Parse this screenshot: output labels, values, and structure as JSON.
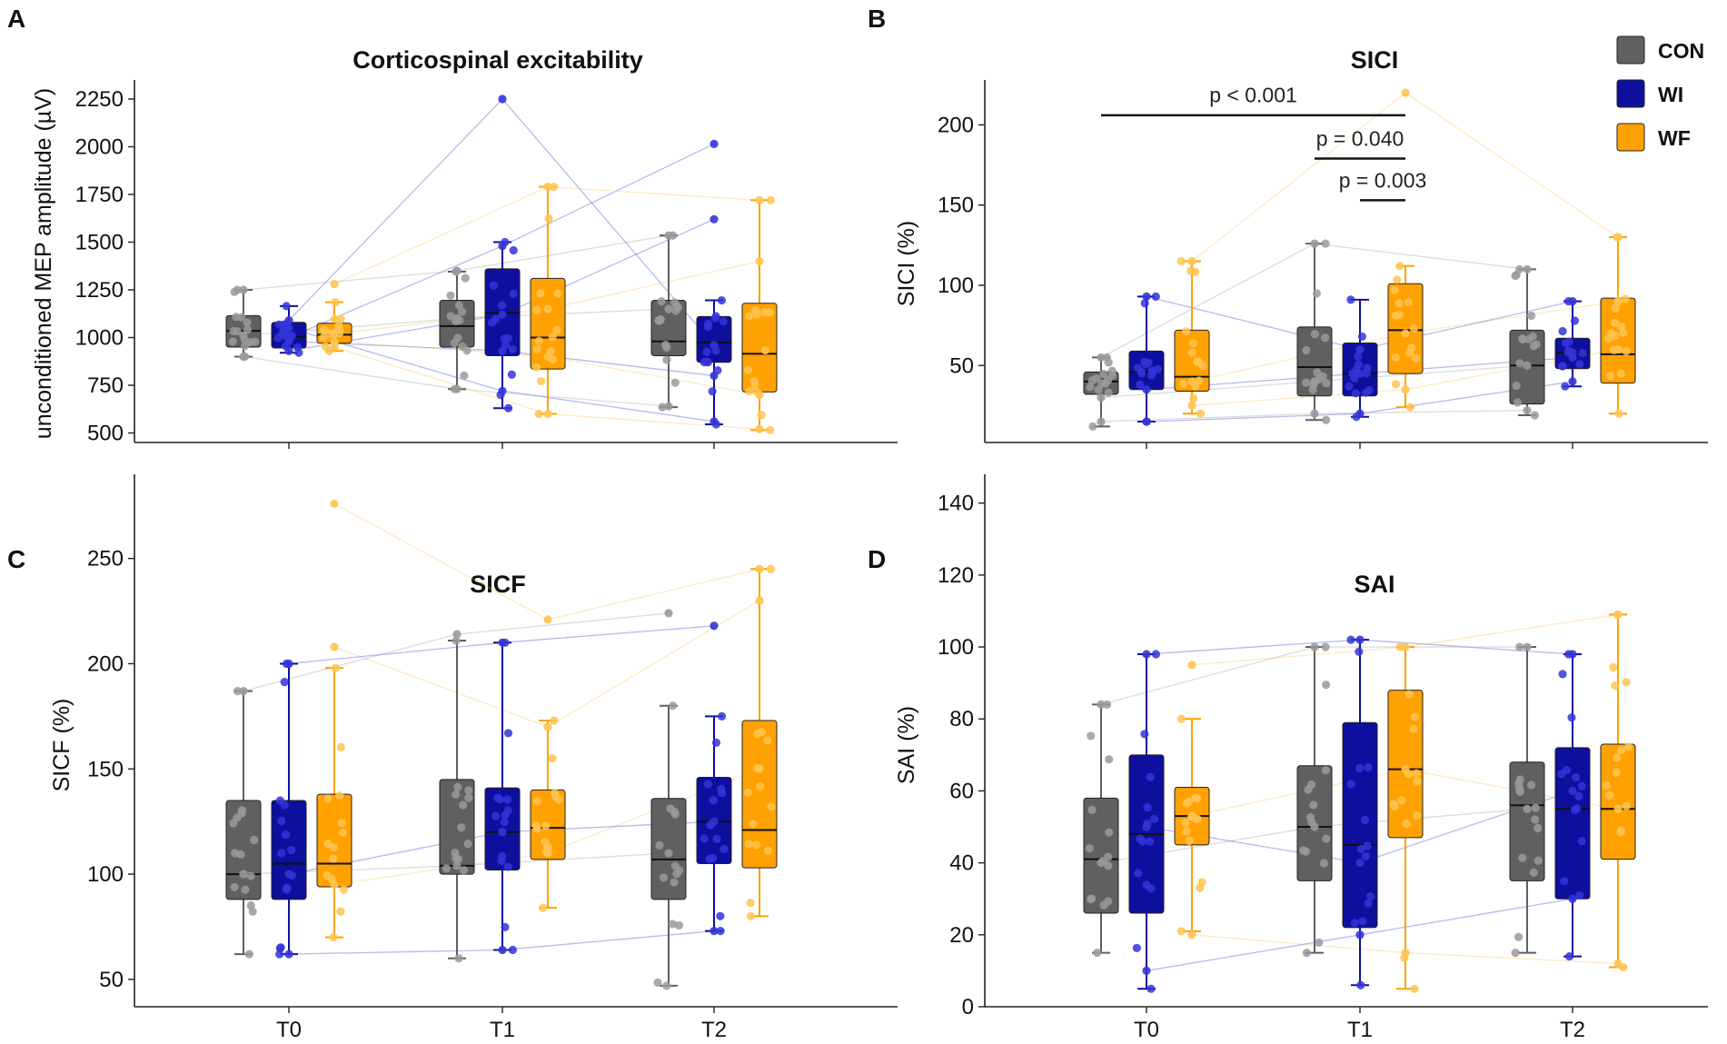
{
  "colors": {
    "CON": "#606060",
    "WI": "#0f0f9e",
    "WF": "#ffa100",
    "CON_point": "#9a9a9a",
    "WI_point": "#3434d8",
    "WF_point": "#ffc451"
  },
  "legend": [
    {
      "key": "CON",
      "label": "CON"
    },
    {
      "key": "WI",
      "label": "WI"
    },
    {
      "key": "WF",
      "label": "WF"
    }
  ],
  "chart_data": [
    {
      "panel": "A",
      "type": "box",
      "title": "Corticospinal excitability",
      "ylabel": "unconditioned MEP amplitude (µV)",
      "xlabel": "",
      "categories": [
        "T0",
        "T1",
        "T2"
      ],
      "ylim": [
        450,
        2350
      ],
      "yticks": [
        500,
        750,
        1000,
        1250,
        1500,
        1750,
        2000,
        2250
      ],
      "series": [
        {
          "name": "CON",
          "boxes": [
            {
              "whisker_low": 900,
              "q1": 950,
              "median": 1035,
              "q3": 1115,
              "whisker_high": 1250
            },
            {
              "whisker_low": 730,
              "q1": 950,
              "median": 1060,
              "q3": 1195,
              "whisker_high": 1345
            },
            {
              "whisker_low": 635,
              "q1": 905,
              "median": 980,
              "q3": 1195,
              "whisker_high": 1535
            }
          ]
        },
        {
          "name": "WI",
          "boxes": [
            {
              "whisker_low": 920,
              "q1": 945,
              "median": 1005,
              "q3": 1080,
              "whisker_high": 1165
            },
            {
              "whisker_low": 630,
              "q1": 905,
              "median": 1130,
              "q3": 1360,
              "whisker_high": 1500
            },
            {
              "whisker_low": 545,
              "q1": 870,
              "median": 975,
              "q3": 1110,
              "whisker_high": 1195
            }
          ]
        },
        {
          "name": "WF",
          "boxes": [
            {
              "whisker_low": 930,
              "q1": 970,
              "median": 1015,
              "q3": 1075,
              "whisker_high": 1185
            },
            {
              "whisker_low": 600,
              "q1": 835,
              "median": 1000,
              "q3": 1310,
              "whisker_high": 1790
            },
            {
              "whisker_low": 515,
              "q1": 715,
              "median": 915,
              "q3": 1180,
              "whisker_high": 1720
            }
          ]
        }
      ],
      "points": [
        {
          "group": "WI",
          "values": [
            1090,
            2250,
            960
          ]
        },
        {
          "group": "WI",
          "values": [
            1000,
            1480,
            2015
          ]
        },
        {
          "group": "WI",
          "values": [
            930,
            1120,
            1620
          ]
        },
        {
          "group": "WI",
          "values": [
            1050,
            720,
            560
          ]
        },
        {
          "group": "WI",
          "values": [
            980,
            930,
            800
          ]
        },
        {
          "group": "CON",
          "values": [
            1250,
            1350,
            1535
          ]
        },
        {
          "group": "CON",
          "values": [
            900,
            730,
            640
          ]
        },
        {
          "group": "CON",
          "values": [
            1010,
            1100,
            1150
          ]
        },
        {
          "group": "WF",
          "values": [
            1280,
            1790,
            1720
          ]
        },
        {
          "group": "WF",
          "values": [
            950,
            600,
            520
          ]
        },
        {
          "group": "WF",
          "values": [
            1020,
            1150,
            1400
          ]
        },
        {
          "group": "WF",
          "values": [
            980,
            900,
            700
          ]
        }
      ],
      "annotations": []
    },
    {
      "panel": "B",
      "type": "box",
      "title": "SICI",
      "ylabel": "SICI (%)",
      "xlabel": "",
      "categories": [
        "T0",
        "T1",
        "T2"
      ],
      "ylim": [
        2,
        228
      ],
      "yticks": [
        50,
        100,
        150,
        200
      ],
      "series": [
        {
          "name": "CON",
          "boxes": [
            {
              "whisker_low": 12,
              "q1": 32,
              "median": 40,
              "q3": 46,
              "whisker_high": 55
            },
            {
              "whisker_low": 16,
              "q1": 31,
              "median": 49,
              "q3": 74,
              "whisker_high": 126
            },
            {
              "whisker_low": 19,
              "q1": 26,
              "median": 50,
              "q3": 72,
              "whisker_high": 110
            }
          ]
        },
        {
          "name": "WI",
          "boxes": [
            {
              "whisker_low": 15,
              "q1": 35,
              "median": 46,
              "q3": 59,
              "whisker_high": 93
            },
            {
              "whisker_low": 18,
              "q1": 31,
              "median": 45,
              "q3": 64,
              "whisker_high": 91
            },
            {
              "whisker_low": 37,
              "q1": 48,
              "median": 58,
              "q3": 67,
              "whisker_high": 90
            }
          ]
        },
        {
          "name": "WF",
          "boxes": [
            {
              "whisker_low": 20,
              "q1": 34,
              "median": 43,
              "q3": 72,
              "whisker_high": 115
            },
            {
              "whisker_low": 24,
              "q1": 45,
              "median": 72,
              "q3": 101,
              "whisker_high": 112
            },
            {
              "whisker_low": 20,
              "q1": 39,
              "median": 57,
              "q3": 92,
              "whisker_high": 130
            }
          ]
        }
      ],
      "points": [
        {
          "group": "WF",
          "values": [
            115,
            220,
            130
          ]
        },
        {
          "group": "WF",
          "values": [
            40,
            70,
            90
          ]
        },
        {
          "group": "WF",
          "values": [
            25,
            35,
            60
          ]
        },
        {
          "group": "CON",
          "values": [
            55,
            126,
            110
          ]
        },
        {
          "group": "CON",
          "values": [
            30,
            40,
            50
          ]
        },
        {
          "group": "CON",
          "values": [
            15,
            20,
            22
          ]
        },
        {
          "group": "WI",
          "values": [
            93,
            60,
            90
          ]
        },
        {
          "group": "WI",
          "values": [
            35,
            45,
            55
          ]
        },
        {
          "group": "WI",
          "values": [
            15,
            20,
            40
          ]
        }
      ],
      "annotations": [
        {
          "text": "p < 0.001",
          "from": "CON@T0",
          "to": "WF@T1",
          "y": 206,
          "label_y": 214
        },
        {
          "text": "p = 0.040",
          "from": "CON@T1",
          "to": "WF@T1",
          "y": 179,
          "label_y": 187
        },
        {
          "text": "p = 0.003",
          "from": "WI@T1",
          "to": "WF@T1",
          "y": 153,
          "label_y": 161
        }
      ]
    },
    {
      "panel": "C",
      "type": "box",
      "title": "SICF",
      "ylabel": "SICF (%)",
      "xlabel": "",
      "categories": [
        "T0",
        "T1",
        "T2"
      ],
      "ylim": [
        37,
        290
      ],
      "yticks": [
        50,
        100,
        150,
        200,
        250
      ],
      "series": [
        {
          "name": "CON",
          "boxes": [
            {
              "whisker_low": 62,
              "q1": 88,
              "median": 100,
              "q3": 135,
              "whisker_high": 187
            },
            {
              "whisker_low": 60,
              "q1": 100,
              "median": 104,
              "q3": 145,
              "whisker_high": 211
            },
            {
              "whisker_low": 47,
              "q1": 88,
              "median": 107,
              "q3": 136,
              "whisker_high": 180
            }
          ]
        },
        {
          "name": "WI",
          "boxes": [
            {
              "whisker_low": 62,
              "q1": 88,
              "median": 105,
              "q3": 135,
              "whisker_high": 200
            },
            {
              "whisker_low": 64,
              "q1": 102,
              "median": 120,
              "q3": 141,
              "whisker_high": 210
            },
            {
              "whisker_low": 73,
              "q1": 105,
              "median": 125,
              "q3": 146,
              "whisker_high": 175
            }
          ]
        },
        {
          "name": "WF",
          "boxes": [
            {
              "whisker_low": 70,
              "q1": 94,
              "median": 105,
              "q3": 138,
              "whisker_high": 198
            },
            {
              "whisker_low": 84,
              "q1": 107,
              "median": 122,
              "q3": 140,
              "whisker_high": 173
            },
            {
              "whisker_low": 80,
              "q1": 103,
              "median": 121,
              "q3": 173,
              "whisker_high": 245
            }
          ]
        }
      ],
      "points": [
        {
          "group": "WF",
          "values": [
            276,
            221,
            245
          ]
        },
        {
          "group": "WF",
          "values": [
            208,
            170,
            230
          ]
        },
        {
          "group": "WF",
          "values": [
            95,
            110,
            150
          ]
        },
        {
          "group": "CON",
          "values": [
            187,
            214,
            224
          ]
        },
        {
          "group": "CON",
          "values": [
            100,
            104,
            110
          ]
        },
        {
          "group": "WI",
          "values": [
            200,
            210,
            218
          ]
        },
        {
          "group": "WI",
          "values": [
            100,
            120,
            125
          ]
        },
        {
          "group": "WI",
          "values": [
            62,
            64,
            73
          ]
        }
      ],
      "annotations": []
    },
    {
      "panel": "D",
      "type": "box",
      "title": "SAI",
      "ylabel": "SAI (%)",
      "xlabel": "",
      "categories": [
        "T0",
        "T1",
        "T2"
      ],
      "ylim": [
        0,
        148
      ],
      "yticks": [
        0,
        20,
        40,
        60,
        80,
        100,
        120,
        140
      ],
      "series": [
        {
          "name": "CON",
          "boxes": [
            {
              "whisker_low": 15,
              "q1": 26,
              "median": 41,
              "q3": 58,
              "whisker_high": 84
            },
            {
              "whisker_low": 15,
              "q1": 35,
              "median": 50,
              "q3": 67,
              "whisker_high": 100
            },
            {
              "whisker_low": 15,
              "q1": 35,
              "median": 56,
              "q3": 68,
              "whisker_high": 100
            }
          ]
        },
        {
          "name": "WI",
          "boxes": [
            {
              "whisker_low": 5,
              "q1": 26,
              "median": 48,
              "q3": 70,
              "whisker_high": 98
            },
            {
              "whisker_low": 6,
              "q1": 22,
              "median": 45,
              "q3": 79,
              "whisker_high": 102
            },
            {
              "whisker_low": 14,
              "q1": 30,
              "median": 55,
              "q3": 72,
              "whisker_high": 98
            }
          ]
        },
        {
          "name": "WF",
          "boxes": [
            {
              "whisker_low": 21,
              "q1": 45,
              "median": 53,
              "q3": 61,
              "whisker_high": 80
            },
            {
              "whisker_low": 5,
              "q1": 47,
              "median": 66,
              "q3": 88,
              "whisker_high": 100
            },
            {
              "whisker_low": 11,
              "q1": 41,
              "median": 55,
              "q3": 73,
              "whisker_high": 109
            }
          ]
        }
      ],
      "points": [
        {
          "group": "WI",
          "values": [
            98,
            102,
            98
          ]
        },
        {
          "group": "WI",
          "values": [
            50,
            40,
            60
          ]
        },
        {
          "group": "WI",
          "values": [
            10,
            20,
            30
          ]
        },
        {
          "group": "CON",
          "values": [
            84,
            100,
            100
          ]
        },
        {
          "group": "CON",
          "values": [
            40,
            50,
            55
          ]
        },
        {
          "group": "WF",
          "values": [
            95,
            100,
            109
          ]
        },
        {
          "group": "WF",
          "values": [
            53,
            66,
            55
          ]
        },
        {
          "group": "WF",
          "values": [
            20,
            15,
            12
          ]
        }
      ],
      "annotations": []
    }
  ]
}
